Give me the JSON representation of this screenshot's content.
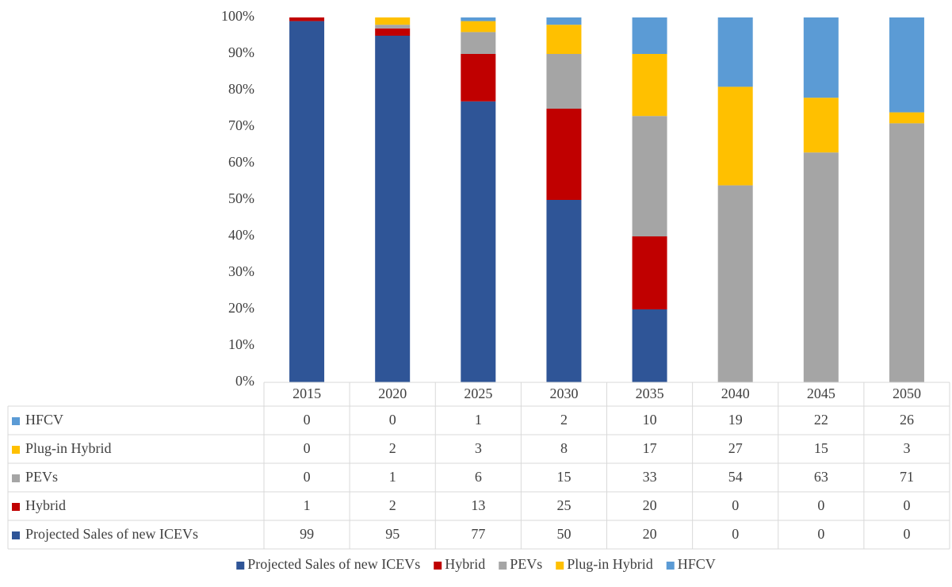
{
  "chart_data": {
    "type": "stacked_bar",
    "categories": [
      "2015",
      "2020",
      "2025",
      "2030",
      "2035",
      "2040",
      "2045",
      "2050"
    ],
    "series": [
      {
        "name": "Projected Sales of new ICEVs",
        "color": "#2f5597",
        "values": [
          99,
          95,
          77,
          50,
          20,
          0,
          0,
          0
        ]
      },
      {
        "name": "Hybrid",
        "color": "#c00000",
        "values": [
          1,
          2,
          13,
          25,
          20,
          0,
          0,
          0
        ]
      },
      {
        "name": "PEVs",
        "color": "#a5a5a5",
        "values": [
          0,
          1,
          6,
          15,
          33,
          54,
          63,
          71
        ]
      },
      {
        "name": "Plug-in Hybrid",
        "color": "#ffc000",
        "values": [
          0,
          2,
          3,
          8,
          17,
          27,
          15,
          3
        ]
      },
      {
        "name": "HFCV",
        "color": "#5b9bd5",
        "values": [
          0,
          0,
          1,
          2,
          10,
          19,
          22,
          26
        ]
      }
    ],
    "ylim": [
      0,
      100
    ],
    "yticks": [
      {
        "value": 0,
        "label": "0%"
      },
      {
        "value": 10,
        "label": "10%"
      },
      {
        "value": 20,
        "label": "20%"
      },
      {
        "value": 30,
        "label": "30%"
      },
      {
        "value": 40,
        "label": "40%"
      },
      {
        "value": 50,
        "label": "50%"
      },
      {
        "value": 60,
        "label": "60%"
      },
      {
        "value": 70,
        "label": "70%"
      },
      {
        "value": 80,
        "label": "80%"
      },
      {
        "value": 90,
        "label": "90%"
      },
      {
        "value": 100,
        "label": "100%"
      }
    ],
    "legend": "bottom",
    "data_table": true
  }
}
